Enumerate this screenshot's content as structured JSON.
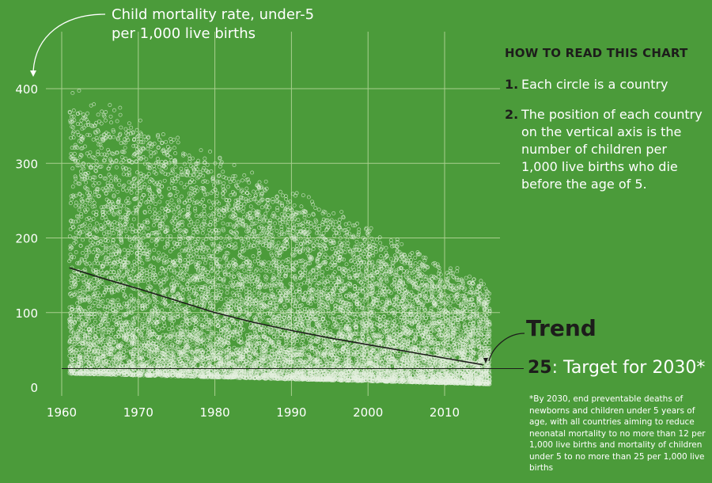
{
  "chart_data": {
    "type": "scatter",
    "title": "Child mortality rate, under-5",
    "subtitle": "per 1,000 live births",
    "xlim": [
      1958,
      2016
    ],
    "ylim": [
      0,
      400
    ],
    "x_ticks": [
      "1960",
      "1970",
      "1980",
      "1990",
      "2000",
      "2010"
    ],
    "y_ticks": [
      "0",
      "100",
      "200",
      "300",
      "400"
    ],
    "grid": true,
    "point_color": "#e6f0e0",
    "scatter_description_years": [
      1961,
      2015
    ],
    "trend": {
      "name": "Trend",
      "color": "#1d1d1b",
      "x": [
        1961,
        1965,
        1970,
        1975,
        1980,
        1985,
        1990,
        1995,
        2000,
        2005,
        2010,
        2015
      ],
      "y": [
        160,
        147,
        132,
        116,
        100,
        87,
        76,
        66,
        57,
        48,
        39,
        30
      ]
    },
    "target": {
      "value": 25,
      "label_value": "25",
      "label_text": ": Target for 2030*",
      "color": "#1d1d1b"
    }
  },
  "howto": {
    "heading": "HOW TO READ THIS CHART",
    "steps": [
      {
        "num": "1.",
        "text": "Each circle is a country"
      },
      {
        "num": "2.",
        "text": "The position of each country on the vertical axis is the number of children per 1,000 live births who die before the age of 5."
      }
    ]
  },
  "footnote": "*By 2030, end preventable deaths of newborns and children under 5 years of age, with all countries aiming to reduce neonatal mortality to no more than 12 per 1,000 live births and mortality of children under 5 to no more than 25 per 1,000 live births",
  "colors": {
    "background": "#4b9b3a",
    "grid": "#a9cf8f",
    "dark": "#1d1d1b"
  }
}
